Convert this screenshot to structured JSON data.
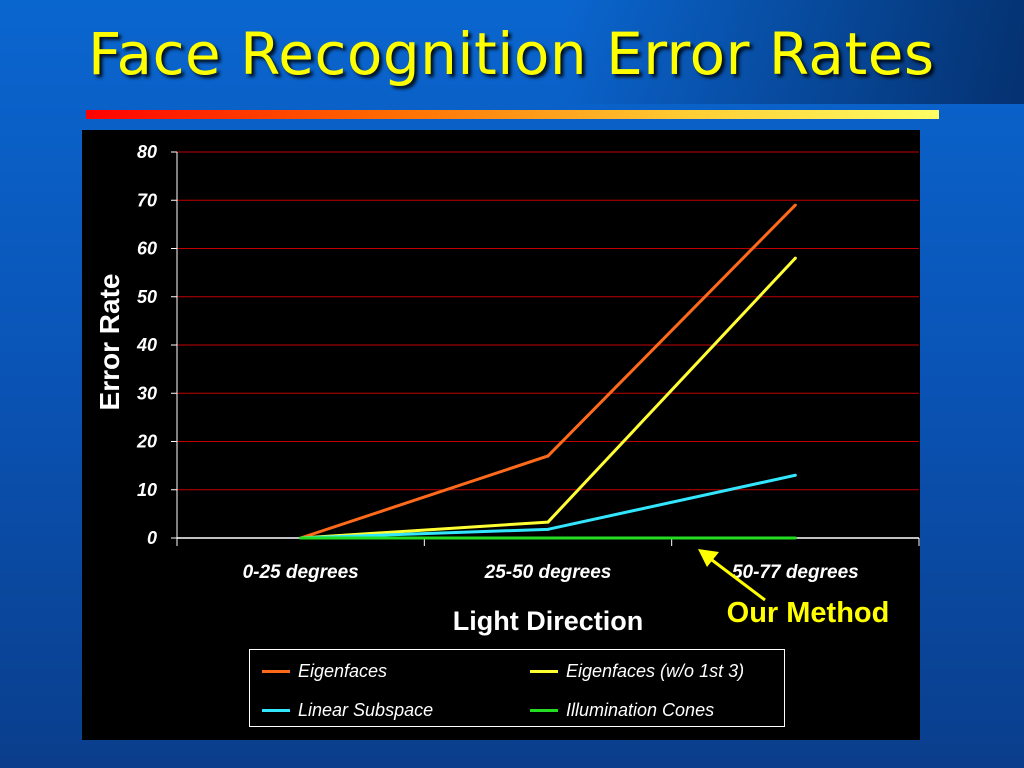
{
  "slide": {
    "title": "Face Recognition Error Rates"
  },
  "colors": {
    "background": "#0a5ec6",
    "title": "#ffff00",
    "grid": "#c00000",
    "annotation": "#ffff00"
  },
  "chart_data": {
    "type": "line",
    "title": "",
    "xlabel": "Light Direction",
    "ylabel": "Error Rate",
    "categories": [
      "0-25 degrees",
      "25-50 degrees",
      "50-77 degrees"
    ],
    "ylim": [
      0,
      80
    ],
    "yticks": [
      0,
      10,
      20,
      30,
      40,
      50,
      60,
      70,
      80
    ],
    "grid": true,
    "legend_position": "bottom",
    "series": [
      {
        "name": "Eigenfaces",
        "color": "#ff6a1a",
        "values": [
          0,
          17,
          69
        ]
      },
      {
        "name": "Eigenfaces (w/o 1st 3)",
        "color": "#ffff33",
        "values": [
          0,
          3.3,
          58
        ]
      },
      {
        "name": "Linear Subspace",
        "color": "#33e6ff",
        "values": [
          0,
          1.8,
          13
        ]
      },
      {
        "name": "Illumination Cones",
        "color": "#22dd22",
        "values": [
          0,
          0,
          0
        ]
      }
    ],
    "annotations": [
      {
        "text": "Our Method",
        "target_series": "Illumination Cones"
      }
    ]
  }
}
